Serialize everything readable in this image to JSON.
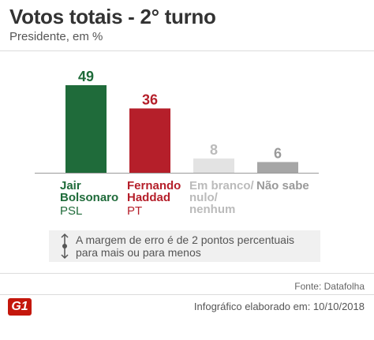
{
  "header": {
    "title": "Votos totais - 2° turno",
    "subtitle": "Presidente, em %"
  },
  "colors": {
    "bolsonaro": "#1f6b3a",
    "haddad": "#b51f2a",
    "branco_bar": "#e3e3e3",
    "branco_label": "#bbbbbb",
    "naosabe_bar": "#a6a6a6",
    "naosabe_label": "#999999"
  },
  "chart_data": {
    "type": "bar",
    "categories": [
      "Jair Bolsonaro",
      "Fernando Haddad",
      "Em branco/ nulo/ nenhum",
      "Não sabe"
    ],
    "values": [
      49,
      36,
      8,
      6
    ],
    "parties": [
      "PSL",
      "PT",
      "",
      ""
    ],
    "ylim": [
      0,
      49
    ],
    "grid": false
  },
  "labels": {
    "bolsonaro": [
      "Jair",
      "Bolsonaro"
    ],
    "haddad": [
      "Fernando",
      "Haddad"
    ],
    "branco": [
      "Em branco/",
      "nulo/",
      "nenhum"
    ],
    "naosabe": [
      "Não sabe"
    ],
    "party_bolsonaro": "PSL",
    "party_haddad": "PT"
  },
  "note": {
    "icon": "error-margin-icon",
    "text": "A margem de erro é de 2 pontos percentuais para mais ou para menos"
  },
  "footer": {
    "source": "Fonte: Datafolha",
    "credit": "Infográfico elaborado em: 10/10/2018",
    "logo": "G1"
  }
}
